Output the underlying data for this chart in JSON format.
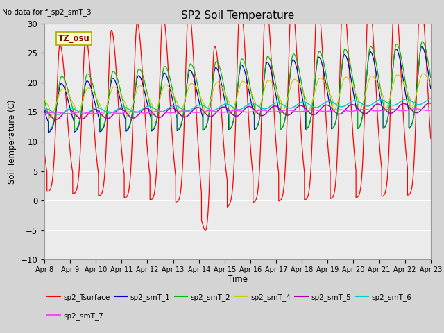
{
  "title": "SP2 Soil Temperature",
  "note": "No data for f_sp2_smT_3",
  "ylabel": "Soil Temperature (C)",
  "xlabel": "Time",
  "tz_label": "TZ_osu",
  "ylim": [
    -10,
    30
  ],
  "bg_color": "#ebebeb",
  "fig_bg": "#d4d4d4",
  "x_tick_labels": [
    "Apr 8",
    "Apr 9",
    "Apr 10",
    "Apr 11",
    "Apr 12",
    "Apr 13",
    "Apr 14",
    "Apr 15",
    "Apr 16",
    "Apr 17",
    "Apr 18",
    "Apr 19",
    "Apr 20",
    "Apr 21",
    "Apr 22",
    "Apr 23"
  ],
  "n_days": 15,
  "colors": {
    "sp2_Tsurface": "#ff0000",
    "sp2_smT_1": "#0000cc",
    "sp2_smT_2": "#00bb00",
    "sp2_smT_4": "#cccc00",
    "sp2_smT_5": "#aa00aa",
    "sp2_smT_6": "#00cccc",
    "sp2_smT_7": "#ff44ff"
  }
}
